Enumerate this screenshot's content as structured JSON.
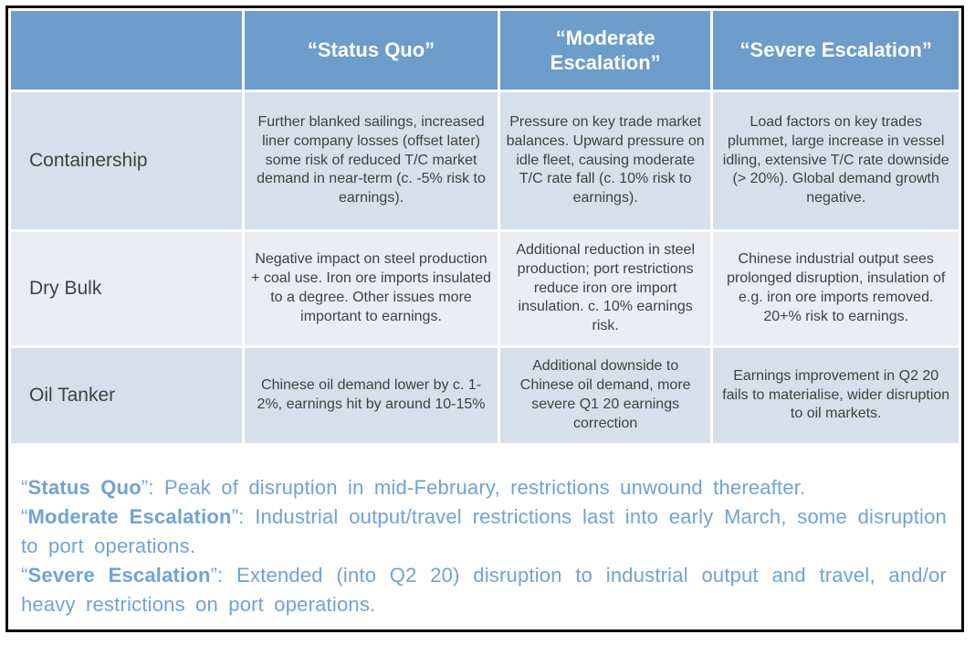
{
  "table": {
    "corner_label": "",
    "headers": [
      "“Status Quo”",
      "“Moderate Escalation”",
      "“Severe Escalation”"
    ],
    "rows": [
      {
        "label": "Containership",
        "cells": [
          "Further blanked sailings, increased liner company losses (offset later) some risk of reduced T/C market demand in near-term (c. -5% risk to earnings).",
          "Pressure on key trade market balances. Upward pressure on idle fleet, causing moderate T/C rate fall (c. 10% risk to earnings).",
          "Load factors on key trades plummet, large increase in vessel idling, extensive T/C rate downside (> 20%). Global demand growth negative."
        ]
      },
      {
        "label": "Dry Bulk",
        "cells": [
          "Negative impact on steel production + coal use. Iron ore imports insulated to a degree. Other issues more important to earnings.",
          "Additional reduction in steel production; port restrictions reduce iron ore import insulation. c. 10% earnings risk.",
          "Chinese industrial output sees prolonged disruption, insulation of e.g. iron ore imports removed. 20+% risk to earnings."
        ]
      },
      {
        "label": "Oil Tanker",
        "cells": [
          "Chinese oil demand lower by c. 1-2%, earnings hit by around 10-15%",
          "Additional downside to Chinese oil demand, more severe Q1 20 earnings correction",
          "Earnings improvement in Q2 20 fails to materialise, wider disruption to oil markets."
        ]
      }
    ]
  },
  "footnotes": [
    {
      "prefix": "“",
      "term": "Status Quo",
      "suffix": "”: Peak of disruption in mid-February, restrictions unwound thereafter."
    },
    {
      "prefix": "“",
      "term": "Moderate Escalation",
      "suffix": "”: Industrial output/travel restrictions last into early March, some disruption to port operations."
    },
    {
      "prefix": "“",
      "term": "Severe Escalation",
      "suffix": "”: Extended (into Q2 20) disruption to industrial output and travel, and/or heavy restrictions on port operations."
    }
  ],
  "colors": {
    "header_bg": "#6C9DCB",
    "band_dark": "#D6E0EC",
    "band_light": "#EAEEF4",
    "cell_text": "#404040",
    "header_text": "#FFFFFF",
    "footnote_text": "#6FA3D6",
    "border": "#0A0A0A"
  }
}
